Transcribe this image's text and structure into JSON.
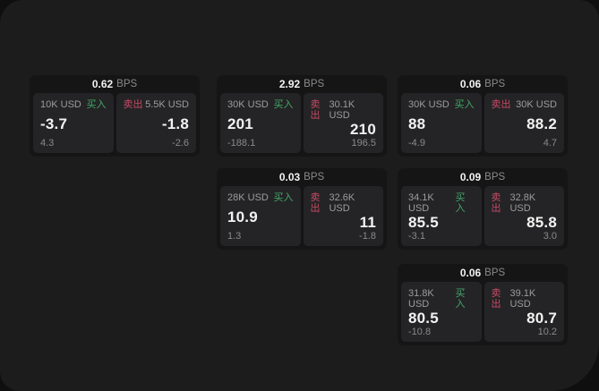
{
  "theme": {
    "outer_bg": "#0f0f10",
    "surface_bg": "#1c1c1d",
    "card_bg": "#151516",
    "panel_bg": "#242426",
    "text_primary": "#f2f2f2",
    "text_muted": "#9c9c9c",
    "text_dim": "#8a8a8a",
    "buy_green": "#43a768",
    "sell_red": "#c84a64"
  },
  "labels": {
    "bps_unit": "BPS",
    "buy": "买入",
    "sell": "卖出"
  },
  "cards": [
    {
      "grid": {
        "row": 0,
        "col": 0
      },
      "bps": "0.62",
      "buy": {
        "size": "10K USD",
        "price": "-3.7",
        "change": "4.3"
      },
      "sell": {
        "size": "5.5K USD",
        "price": "-1.8",
        "change": "-2.6"
      }
    },
    {
      "grid": {
        "row": 0,
        "col": 1
      },
      "bps": "2.92",
      "buy": {
        "size": "30K USD",
        "price": "201",
        "change": "-188.1"
      },
      "sell": {
        "size": "30.1K USD",
        "price": "210",
        "change": "196.5"
      }
    },
    {
      "grid": {
        "row": 0,
        "col": 2
      },
      "bps": "0.06",
      "buy": {
        "size": "30K USD",
        "price": "88",
        "change": "-4.9"
      },
      "sell": {
        "size": "30K USD",
        "price": "88.2",
        "change": "4.7"
      }
    },
    {
      "grid": {
        "row": 1,
        "col": 1
      },
      "bps": "0.03",
      "buy": {
        "size": "28K USD",
        "price": "10.9",
        "change": "1.3"
      },
      "sell": {
        "size": "32.6K USD",
        "price": "11",
        "change": "-1.8"
      }
    },
    {
      "grid": {
        "row": 1,
        "col": 2
      },
      "bps": "0.09",
      "buy": {
        "size": "34.1K USD",
        "price": "85.5",
        "change": "-3.1"
      },
      "sell": {
        "size": "32.8K USD",
        "price": "85.8",
        "change": "3.0"
      }
    },
    {
      "grid": {
        "row": 2,
        "col": 2
      },
      "bps": "0.06",
      "buy": {
        "size": "31.8K USD",
        "price": "80.5",
        "change": "-10.8"
      },
      "sell": {
        "size": "39.1K USD",
        "price": "80.7",
        "change": "10.2"
      }
    }
  ]
}
